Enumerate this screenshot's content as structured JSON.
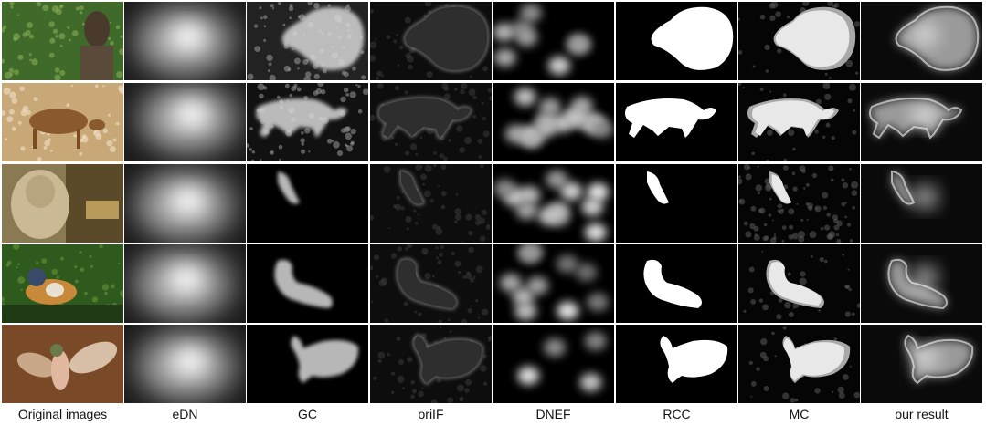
{
  "columns": [
    {
      "key": "original",
      "label": "Original images"
    },
    {
      "key": "edn",
      "label": "eDN"
    },
    {
      "key": "gc",
      "label": "GC"
    },
    {
      "key": "oriif",
      "label": "oriIF"
    },
    {
      "key": "dnef",
      "label": "DNEF"
    },
    {
      "key": "rcc",
      "label": "RCC"
    },
    {
      "key": "mc",
      "label": "MC"
    },
    {
      "key": "ours",
      "label": "our result"
    }
  ],
  "rows": [
    {
      "key": "statue",
      "subject": "carved statue in foliage"
    },
    {
      "key": "deer",
      "subject": "deer in grass"
    },
    {
      "key": "sheep",
      "subject": "sheep at fence"
    },
    {
      "key": "duck",
      "subject": "mandarin duck on water"
    },
    {
      "key": "hummingbird",
      "subject": "hummingbird in flight"
    }
  ],
  "colors": {
    "background": "#ffffff",
    "saliency_dark": "#000000",
    "saliency_light": "#ffffff",
    "foliage": "#3f6a2a",
    "deer_field": "#c9a878",
    "sheep_scene": "#8a7a54",
    "duck_water": "#2f5a1e",
    "bird_bg": "#7a4a28"
  }
}
